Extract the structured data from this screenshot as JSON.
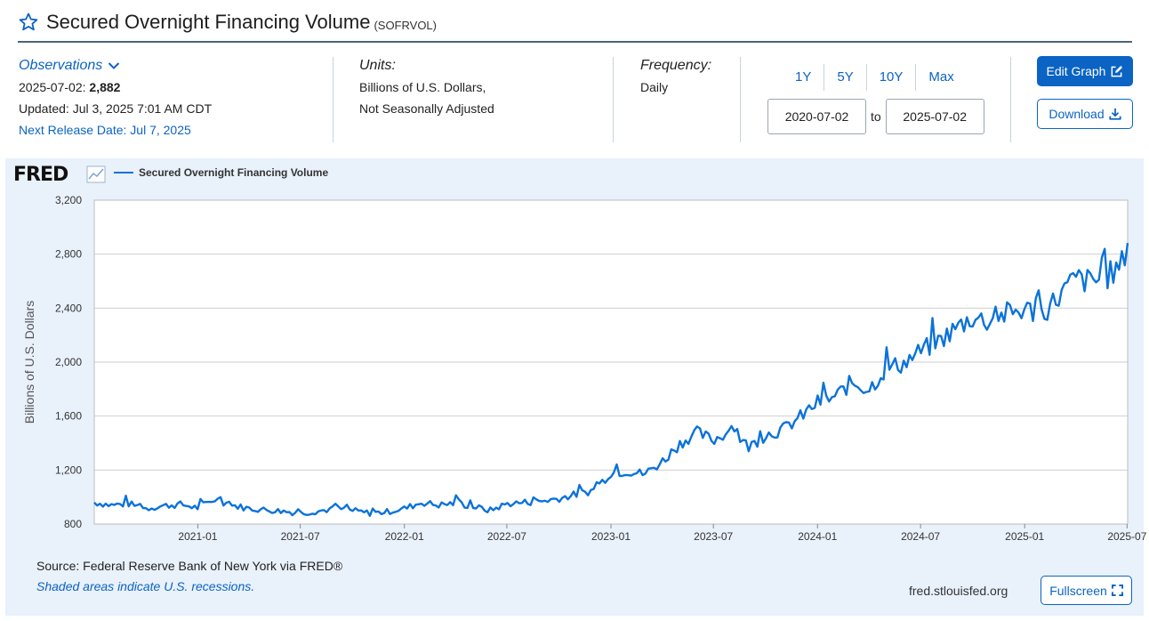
{
  "header": {
    "title": "Secured Overnight Financing Volume",
    "series_id": "(SOFRVOL)",
    "icons": {
      "favorite": "star-outline-icon"
    }
  },
  "observations": {
    "label": "Observations",
    "date": "2025-07-02:",
    "value": "2,882",
    "updated": "Updated: Jul 3, 2025 7:01 AM CDT",
    "next_release": "Next Release Date: Jul 7, 2025"
  },
  "units": {
    "label": "Units:",
    "line1": "Billions of U.S. Dollars,",
    "line2": "Not Seasonally Adjusted"
  },
  "frequency": {
    "label": "Frequency:",
    "value": "Daily"
  },
  "ranges": [
    "1Y",
    "5Y",
    "10Y",
    "Max"
  ],
  "date_range": {
    "start": "2020-07-02",
    "to_label": "to",
    "end": "2025-07-02"
  },
  "buttons": {
    "edit": "Edit Graph",
    "download": "Download",
    "fullscreen": "Fullscreen"
  },
  "graph": {
    "logo": "FRED",
    "source": "Source: Federal Reserve Bank of New York via FRED®",
    "recession_note": "Shaded areas indicate U.S. recessions.",
    "url": "fred.stlouisfed.org"
  },
  "colors": {
    "accent": "#0b63c4",
    "series_line": "#0b72d9",
    "panel_bg": "#e9f1fb"
  },
  "chart_data": {
    "type": "line",
    "legend": "Secured Overnight Financing Volume",
    "ylabel": "Billions of U.S. Dollars",
    "ylim": [
      800,
      3200
    ],
    "yticks": [
      800,
      1200,
      1600,
      2000,
      2400,
      2800,
      3200
    ],
    "ytick_labels": [
      "800",
      "1,200",
      "1,600",
      "2,000",
      "2,400",
      "2,800",
      "3,200"
    ],
    "xlim": [
      "2020-07-02",
      "2025-07-02"
    ],
    "xticks": [
      "2021-01",
      "2021-07",
      "2022-01",
      "2022-07",
      "2023-01",
      "2023-07",
      "2024-01",
      "2024-07",
      "2025-01",
      "2025-07"
    ],
    "grid": true,
    "series": [
      {
        "points": [
          [
            "2020-07-02",
            960
          ],
          [
            "2020-08-01",
            940
          ],
          [
            "2020-09-01",
            950
          ],
          [
            "2020-10-01",
            915
          ],
          [
            "2020-11-01",
            935
          ],
          [
            "2020-12-01",
            945
          ],
          [
            "2021-01-01",
            920
          ],
          [
            "2021-02-01",
            985
          ],
          [
            "2021-03-01",
            940
          ],
          [
            "2021-04-01",
            915
          ],
          [
            "2021-05-01",
            905
          ],
          [
            "2021-06-01",
            895
          ],
          [
            "2021-07-01",
            880
          ],
          [
            "2021-08-01",
            895
          ],
          [
            "2021-09-01",
            915
          ],
          [
            "2021-10-01",
            900
          ],
          [
            "2021-11-01",
            880
          ],
          [
            "2021-12-01",
            890
          ],
          [
            "2022-01-01",
            915
          ],
          [
            "2022-02-01",
            960
          ],
          [
            "2022-03-01",
            940
          ],
          [
            "2022-04-01",
            955
          ],
          [
            "2022-05-01",
            930
          ],
          [
            "2022-06-01",
            900
          ],
          [
            "2022-07-01",
            950
          ],
          [
            "2022-08-01",
            960
          ],
          [
            "2022-09-01",
            970
          ],
          [
            "2022-10-01",
            990
          ],
          [
            "2022-11-01",
            1020
          ],
          [
            "2022-12-01",
            1050
          ],
          [
            "2023-01-01",
            1180
          ],
          [
            "2023-02-01",
            1190
          ],
          [
            "2023-03-01",
            1170
          ],
          [
            "2023-04-01",
            1260
          ],
          [
            "2023-05-01",
            1390
          ],
          [
            "2023-06-01",
            1480
          ],
          [
            "2023-07-01",
            1420
          ],
          [
            "2023-08-01",
            1500
          ],
          [
            "2023-09-01",
            1370
          ],
          [
            "2023-10-01",
            1460
          ],
          [
            "2023-11-01",
            1500
          ],
          [
            "2023-12-01",
            1590
          ],
          [
            "2024-01-01",
            1700
          ],
          [
            "2024-02-01",
            1740
          ],
          [
            "2024-03-01",
            1850
          ],
          [
            "2024-04-01",
            1800
          ],
          [
            "2024-05-01",
            1950
          ],
          [
            "2024-06-01",
            1990
          ],
          [
            "2024-07-01",
            2080
          ],
          [
            "2024-08-01",
            2150
          ],
          [
            "2024-09-01",
            2250
          ],
          [
            "2024-10-01",
            2330
          ],
          [
            "2024-11-01",
            2300
          ],
          [
            "2024-12-01",
            2360
          ],
          [
            "2025-01-01",
            2390
          ],
          [
            "2025-02-01",
            2360
          ],
          [
            "2025-03-01",
            2480
          ],
          [
            "2025-04-01",
            2620
          ],
          [
            "2025-05-01",
            2590
          ],
          [
            "2025-06-01",
            2650
          ],
          [
            "2025-06-20",
            2700
          ],
          [
            "2025-07-02",
            2882
          ]
        ]
      }
    ]
  }
}
